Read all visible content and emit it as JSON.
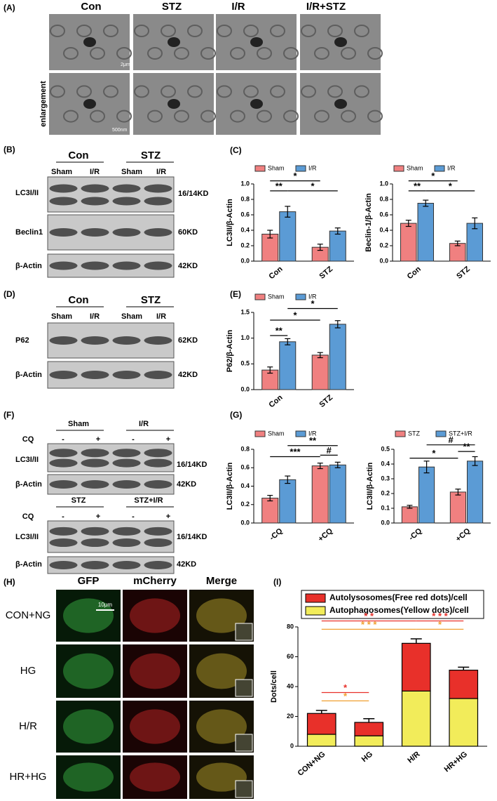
{
  "panels": {
    "A": {
      "label": "(A)",
      "columns": [
        "Con",
        "STZ",
        "I/R",
        "I/R+STZ"
      ],
      "row_label": "enlargement",
      "scale_bars": [
        "2μm",
        "500nm"
      ]
    },
    "B": {
      "label": "(B)",
      "groups": [
        "Con",
        "STZ"
      ],
      "lanes": [
        "Sham",
        "I/R",
        "Sham",
        "I/R"
      ],
      "rows": [
        {
          "protein": "LC3I/II",
          "size": "16/14KD"
        },
        {
          "protein": "Beclin1",
          "size": "60KD"
        },
        {
          "protein": "β-Actin",
          "size": "42KD"
        }
      ]
    },
    "C": {
      "label": "(C)"
    },
    "D": {
      "label": "(D)",
      "groups": [
        "Con",
        "STZ"
      ],
      "lanes": [
        "Sham",
        "I/R",
        "Sham",
        "I/R"
      ],
      "rows": [
        {
          "protein": "P62",
          "size": "62KD"
        },
        {
          "protein": "β-Actin",
          "size": "42KD"
        }
      ]
    },
    "E": {
      "label": "(E)"
    },
    "F": {
      "label": "(F)",
      "blots": [
        {
          "groups": [
            "Sham",
            "I/R"
          ],
          "treatment": "CQ",
          "lanes": [
            "-",
            "+",
            "-",
            "+"
          ],
          "rows": [
            {
              "protein": "LC3I/II",
              "size": "16/14KD"
            },
            {
              "protein": "β-Actin",
              "size": "42KD"
            }
          ]
        },
        {
          "groups": [
            "STZ",
            "STZ+I/R"
          ],
          "treatment": "CQ",
          "lanes": [
            "-",
            "+",
            "-",
            "+"
          ],
          "rows": [
            {
              "protein": "LC3I/II",
              "size": "16/14KD"
            },
            {
              "protein": "β-Actin",
              "size": "42KD"
            }
          ]
        }
      ]
    },
    "G": {
      "label": "(G)"
    },
    "H": {
      "label": "(H)",
      "columns": [
        "GFP",
        "mCherry",
        "Merge"
      ],
      "rows": [
        "CON+NG",
        "HG",
        "H/R",
        "HR+HG"
      ],
      "scale_bar": "10μm"
    },
    "I": {
      "label": "(I)"
    }
  },
  "chart_data": [
    {
      "type": "bar",
      "y_label": "LC3II/β-Actin",
      "categories": [
        "Con",
        "STZ"
      ],
      "series": [
        {
          "name": "Sham",
          "color": "#f08080",
          "values": [
            0.35,
            0.18
          ],
          "errors": [
            0.05,
            0.04
          ]
        },
        {
          "name": "I/R",
          "color": "#5b9bd5",
          "values": [
            0.64,
            0.39
          ],
          "errors": [
            0.07,
            0.04
          ]
        }
      ],
      "ylim": [
        0,
        1
      ],
      "yticks": [
        {
          "value": 0,
          "label": "0.0"
        },
        0.2,
        0.4,
        0.6,
        0.8,
        {
          "value": 1,
          "label": "1.0"
        }
      ],
      "annotations": [
        {
          "text": "*"
        },
        {
          "text": "**"
        },
        {
          "text": "*"
        }
      ]
    },
    {
      "type": "bar",
      "y_label": "Beclin-1/β-Actin",
      "categories": [
        "Con",
        "STZ"
      ],
      "series": [
        {
          "name": "Sham",
          "color": "#f08080",
          "values": [
            0.49,
            0.23
          ],
          "errors": [
            0.04,
            0.03
          ]
        },
        {
          "name": "I/R",
          "color": "#5b9bd5",
          "values": [
            0.75,
            0.49
          ],
          "errors": [
            0.04,
            0.07
          ]
        }
      ],
      "ylim": [
        0,
        1
      ],
      "yticks": [
        {
          "value": 0,
          "label": "0.0"
        },
        0.2,
        0.4,
        0.6,
        0.8,
        {
          "value": 1,
          "label": "1.0"
        }
      ],
      "annotations": [
        {
          "text": "*"
        },
        {
          "text": "**"
        },
        {
          "text": "*"
        }
      ]
    },
    {
      "type": "bar",
      "y_label": "P62/β-Actin",
      "categories": [
        "Con",
        "STZ"
      ],
      "series": [
        {
          "name": "Sham",
          "color": "#f08080",
          "values": [
            0.38,
            0.67
          ],
          "errors": [
            0.06,
            0.05
          ]
        },
        {
          "name": "I/R",
          "color": "#5b9bd5",
          "values": [
            0.93,
            1.27
          ],
          "errors": [
            0.06,
            0.07
          ]
        }
      ],
      "ylim": [
        0,
        1.5
      ],
      "yticks": [
        {
          "value": 0,
          "label": "0.0"
        },
        0.5,
        {
          "value": 1,
          "label": "1.0"
        },
        1.5
      ],
      "annotations": [
        {
          "text": "*"
        },
        {
          "text": "*"
        },
        {
          "text": "**"
        }
      ]
    },
    {
      "type": "bar",
      "y_label": "LC3II/β-Actin",
      "categories": [
        "-CQ",
        "+CQ"
      ],
      "series": [
        {
          "name": "Sham",
          "color": "#f08080",
          "values": [
            0.27,
            0.62
          ],
          "errors": [
            0.03,
            0.03
          ]
        },
        {
          "name": "I/R",
          "color": "#5b9bd5",
          "values": [
            0.47,
            0.63
          ],
          "errors": [
            0.04,
            0.03
          ]
        }
      ],
      "ylim": [
        0,
        0.8
      ],
      "yticks": [
        {
          "value": 0,
          "label": "0.0"
        },
        0.2,
        0.4,
        0.6,
        0.8
      ],
      "annotations": [
        {
          "text": "**"
        },
        {
          "text": "***"
        },
        {
          "text": "#"
        }
      ]
    },
    {
      "type": "bar",
      "y_label": "LC3II/β-Actin",
      "categories": [
        "-CQ",
        "+CQ"
      ],
      "series": [
        {
          "name": "STZ",
          "color": "#f08080",
          "values": [
            0.11,
            0.21
          ],
          "errors": [
            0.01,
            0.02
          ]
        },
        {
          "name": "STZ+I/R",
          "color": "#5b9bd5",
          "values": [
            0.38,
            0.42
          ],
          "errors": [
            0.04,
            0.03
          ]
        }
      ],
      "ylim": [
        0,
        0.5
      ],
      "yticks": [
        {
          "value": 0,
          "label": "0.0"
        },
        0.1,
        0.2,
        0.3,
        0.4,
        0.5
      ],
      "annotations": [
        {
          "text": "#"
        },
        {
          "text": "*"
        },
        {
          "text": "**"
        }
      ]
    },
    {
      "type": "stacked_bar",
      "y_label": "Dots/cell",
      "categories": [
        "CON+NG",
        "HG",
        "H/R",
        "HR+HG"
      ],
      "series": [
        {
          "name": "Autolysosomes(Free red dots)/cell",
          "color": "#e8302a",
          "values": [
            14,
            9,
            32,
            19
          ],
          "errors": [
            2,
            2.5,
            3,
            2
          ]
        },
        {
          "name": "Autophagosomes(Yellow dots)/cell",
          "color": "#f2ec5a",
          "values": [
            8,
            7,
            37,
            32
          ],
          "errors": [
            1.5,
            1.5,
            3.5,
            3
          ]
        }
      ],
      "ylim": [
        0,
        80
      ],
      "yticks": [
        0,
        20,
        40,
        60,
        80
      ],
      "annotations": [
        {
          "text": "* *",
          "color": "#e8302a"
        },
        {
          "text": "* * *",
          "color": "#f0a030"
        },
        {
          "text": "* * *",
          "color": "#e8302a"
        },
        {
          "text": "*",
          "color": "#f0a030"
        },
        {
          "text": "*",
          "color": "#e8302a"
        },
        {
          "text": "*",
          "color": "#f0a030"
        }
      ]
    }
  ]
}
